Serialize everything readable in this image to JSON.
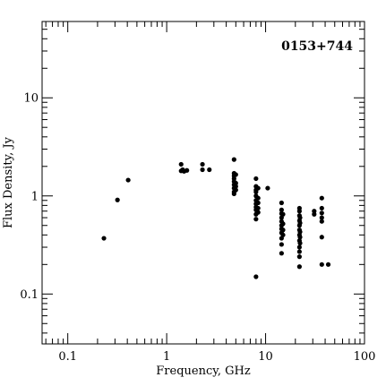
{
  "chart_data": {
    "type": "scatter",
    "title": "",
    "annotation": "0153+744",
    "xlabel": "Frequency, GHz",
    "ylabel": "Flux Density, Jy",
    "xscale": "log",
    "yscale": "log",
    "xlim": [
      0.055,
      100
    ],
    "ylim": [
      0.031,
      60
    ],
    "grid": false,
    "x_tick_labels": [
      {
        "value": 0.1,
        "label": "0.1"
      },
      {
        "value": 1,
        "label": "1"
      },
      {
        "value": 10,
        "label": "10"
      },
      {
        "value": 100,
        "label": "100"
      }
    ],
    "y_tick_labels": [
      {
        "value": 0.1,
        "label": "0.1"
      },
      {
        "value": 1,
        "label": "1"
      },
      {
        "value": 10,
        "label": "10"
      }
    ],
    "series": [
      {
        "color": "#000000",
        "points": [
          [
            0.232,
            0.37
          ],
          [
            0.318,
            0.91
          ],
          [
            0.408,
            1.45
          ],
          [
            1.4,
            2.1
          ],
          [
            1.4,
            1.8
          ],
          [
            1.45,
            1.85
          ],
          [
            1.5,
            1.78
          ],
          [
            1.6,
            1.82
          ],
          [
            2.3,
            2.1
          ],
          [
            2.3,
            1.85
          ],
          [
            2.7,
            1.85
          ],
          [
            4.8,
            2.35
          ],
          [
            4.8,
            1.7
          ],
          [
            4.8,
            1.6
          ],
          [
            4.8,
            1.5
          ],
          [
            4.8,
            1.4
          ],
          [
            4.8,
            1.3
          ],
          [
            4.8,
            1.2
          ],
          [
            4.8,
            1.1
          ],
          [
            4.8,
            1.05
          ],
          [
            5.0,
            1.65
          ],
          [
            5.0,
            1.35
          ],
          [
            5.0,
            1.25
          ],
          [
            5.0,
            1.15
          ],
          [
            8.0,
            1.5
          ],
          [
            8.0,
            1.25
          ],
          [
            8.0,
            1.15
          ],
          [
            8.0,
            1.1
          ],
          [
            8.0,
            1.0
          ],
          [
            8.0,
            0.9
          ],
          [
            8.0,
            0.83
          ],
          [
            8.0,
            0.77
          ],
          [
            8.0,
            0.72
          ],
          [
            8.0,
            0.65
          ],
          [
            8.0,
            0.58
          ],
          [
            8.0,
            0.15
          ],
          [
            8.4,
            1.2
          ],
          [
            8.4,
            0.95
          ],
          [
            8.4,
            0.85
          ],
          [
            8.4,
            0.75
          ],
          [
            8.4,
            0.68
          ],
          [
            10.5,
            1.2
          ],
          [
            14.5,
            0.85
          ],
          [
            14.5,
            0.72
          ],
          [
            14.5,
            0.66
          ],
          [
            14.5,
            0.6
          ],
          [
            14.5,
            0.55
          ],
          [
            14.5,
            0.5
          ],
          [
            14.5,
            0.46
          ],
          [
            14.5,
            0.42
          ],
          [
            14.5,
            0.37
          ],
          [
            14.5,
            0.32
          ],
          [
            14.5,
            0.26
          ],
          [
            15.0,
            0.65
          ],
          [
            15.0,
            0.52
          ],
          [
            15.0,
            0.45
          ],
          [
            15.0,
            0.4
          ],
          [
            22.0,
            0.75
          ],
          [
            22.0,
            0.7
          ],
          [
            22.0,
            0.63
          ],
          [
            22.0,
            0.56
          ],
          [
            22.0,
            0.5
          ],
          [
            22.0,
            0.45
          ],
          [
            22.0,
            0.4
          ],
          [
            22.0,
            0.35
          ],
          [
            22.0,
            0.3
          ],
          [
            22.0,
            0.27
          ],
          [
            22.0,
            0.24
          ],
          [
            22.0,
            0.19
          ],
          [
            22.3,
            0.6
          ],
          [
            22.3,
            0.53
          ],
          [
            22.3,
            0.43
          ],
          [
            22.3,
            0.38
          ],
          [
            22.3,
            0.33
          ],
          [
            31.0,
            0.7
          ],
          [
            31.0,
            0.65
          ],
          [
            37.0,
            0.95
          ],
          [
            37.0,
            0.75
          ],
          [
            37.0,
            0.67
          ],
          [
            37.0,
            0.6
          ],
          [
            37.0,
            0.55
          ],
          [
            37.0,
            0.38
          ],
          [
            37.0,
            0.2
          ],
          [
            43.0,
            0.2
          ]
        ]
      }
    ]
  }
}
